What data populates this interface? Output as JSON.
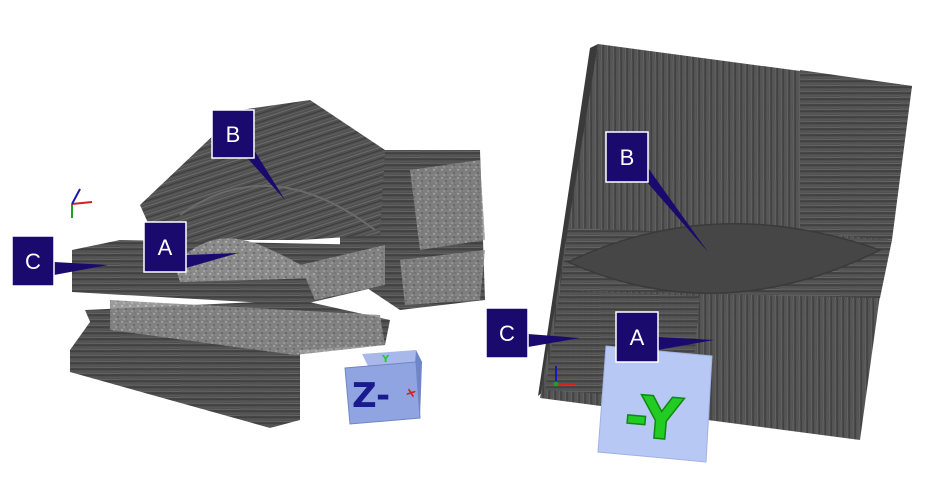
{
  "left_view": {
    "labels": {
      "a": "A",
      "b": "B",
      "c": "C"
    },
    "orientation_cube": {
      "face_front": "Z-",
      "face_top": "Y",
      "face_side": "X"
    },
    "axis_colors": {
      "x": "#d42020",
      "y": "#1a1ab0",
      "z": "#20a020"
    }
  },
  "right_view": {
    "labels": {
      "a": "A",
      "b": "B",
      "c": "C"
    },
    "orientation_panel": {
      "face": "-Y"
    },
    "axis_colors": {
      "x": "#d42020",
      "y": "#1a1ab0",
      "z": "#20a020"
    }
  },
  "style": {
    "callout_fill": "#1a0a6e",
    "callout_border": "#ffffff",
    "cube_face": "#8fa4e0",
    "panel_face": "#b8c8f4",
    "axis_label_green": "#22cc22"
  }
}
